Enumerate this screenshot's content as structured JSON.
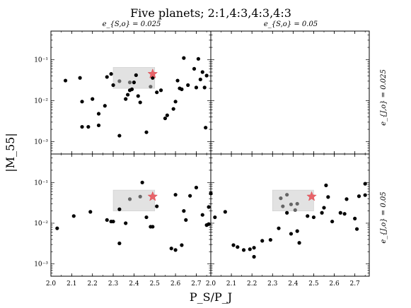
{
  "title": "Five planets; 2:1,4:3,4:3,4:3",
  "col_titles": [
    "e_{S,o} = 0.025",
    "e_{S,o} = 0.05"
  ],
  "row_titles": [
    "e_{J,o} = 0.025",
    "e_{J,o} = 0.05"
  ],
  "xlabel": "P_S/P_J",
  "ylabel": "|M_55|",
  "chart_data": {
    "type": "scatter",
    "title": "Five planets; 2:1,4:3,4:3,4:3",
    "xlabel": "P_S/P_J",
    "ylabel": "|M_55|",
    "xlim": [
      2.0,
      2.77
    ],
    "ylim": [
      0.0005,
      0.5
    ],
    "y_scale": "log",
    "x_ticks": [
      "2.0",
      "2.1",
      "2.2",
      "2.3",
      "2.4",
      "2.5",
      "2.6",
      "2.7"
    ],
    "y_ticks": [
      "10^-3",
      "10^-2",
      "10^-1"
    ],
    "shaded_region": {
      "x": [
        2.3,
        2.5
      ],
      "y": [
        0.02,
        0.065
      ]
    },
    "star": {
      "x": 2.49,
      "y": 0.045
    },
    "panels": [
      {
        "name": "top-left",
        "col_title": "e_{S,o} = 0.025",
        "row_title": null,
        "points": [
          [
            2.07,
            0.031
          ],
          [
            2.14,
            0.036
          ],
          [
            2.15,
            0.0095
          ],
          [
            2.15,
            0.0023
          ],
          [
            2.18,
            0.0023
          ],
          [
            2.2,
            0.011
          ],
          [
            2.23,
            0.0025
          ],
          [
            2.23,
            0.0048
          ],
          [
            2.26,
            0.0075
          ],
          [
            2.27,
            0.038
          ],
          [
            2.29,
            0.045
          ],
          [
            2.3,
            0.024
          ],
          [
            2.33,
            0.0014
          ],
          [
            2.36,
            0.011
          ],
          [
            2.37,
            0.014
          ],
          [
            2.38,
            0.018
          ],
          [
            2.39,
            0.019
          ],
          [
            2.4,
            0.028
          ],
          [
            2.41,
            0.042
          ],
          [
            2.42,
            0.013
          ],
          [
            2.43,
            0.0091
          ],
          [
            2.46,
            0.0017
          ],
          [
            2.49,
            0.036
          ],
          [
            2.51,
            0.016
          ],
          [
            2.53,
            0.018
          ],
          [
            2.55,
            0.0037
          ],
          [
            2.56,
            0.0044
          ],
          [
            2.59,
            0.0063
          ],
          [
            2.6,
            0.0095
          ],
          [
            2.61,
            0.031
          ],
          [
            2.62,
            0.02
          ],
          [
            2.63,
            0.019
          ],
          [
            2.64,
            0.11
          ],
          [
            2.66,
            0.024
          ],
          [
            2.69,
            0.06
          ],
          [
            2.7,
            0.021
          ],
          [
            2.71,
            0.105
          ],
          [
            2.72,
            0.033
          ],
          [
            2.73,
            0.05
          ],
          [
            2.74,
            0.021
          ],
          [
            2.745,
            0.0022
          ],
          [
            2.75,
            0.041
          ]
        ],
        "gray_points": [
          [
            2.33,
            0.03
          ],
          [
            2.38,
            0.028
          ],
          [
            2.48,
            0.022
          ]
        ]
      },
      {
        "name": "top-right",
        "col_title": "e_{S,o} = 0.05",
        "row_title": "e_{J,o} = 0.025",
        "points": [],
        "gray_points": []
      },
      {
        "name": "bottom-left",
        "col_title": null,
        "row_title": null,
        "points": [
          [
            2.03,
            0.0075
          ],
          [
            2.11,
            0.015
          ],
          [
            2.19,
            0.019
          ],
          [
            2.27,
            0.012
          ],
          [
            2.29,
            0.011
          ],
          [
            2.3,
            0.011
          ],
          [
            2.33,
            0.022
          ],
          [
            2.33,
            0.0032
          ],
          [
            2.36,
            0.01
          ],
          [
            2.44,
            0.1
          ],
          [
            2.46,
            0.014
          ],
          [
            2.48,
            0.0082
          ],
          [
            2.49,
            0.0082
          ],
          [
            2.51,
            0.026
          ],
          [
            2.58,
            0.0024
          ],
          [
            2.6,
            0.0022
          ],
          [
            2.6,
            0.05
          ],
          [
            2.63,
            0.0029
          ],
          [
            2.64,
            0.02
          ],
          [
            2.65,
            0.012
          ],
          [
            2.67,
            0.047
          ],
          [
            2.7,
            0.075
          ],
          [
            2.73,
            0.016
          ],
          [
            2.75,
            0.009
          ],
          [
            2.76,
            0.025
          ],
          [
            2.76,
            0.0095
          ]
        ],
        "gray_points": [
          [
            2.38,
            0.039
          ],
          [
            2.43,
            0.045
          ]
        ]
      },
      {
        "name": "bottom-right",
        "col_title": null,
        "row_title": "e_{J,o} = 0.05",
        "points": [
          [
            2.0,
            0.054
          ],
          [
            2.02,
            0.014
          ],
          [
            2.07,
            0.019
          ],
          [
            2.11,
            0.0029
          ],
          [
            2.13,
            0.0026
          ],
          [
            2.16,
            0.0022
          ],
          [
            2.19,
            0.0023
          ],
          [
            2.21,
            0.0015
          ],
          [
            2.21,
            0.0025
          ],
          [
            2.25,
            0.0037
          ],
          [
            2.29,
            0.0039
          ],
          [
            2.33,
            0.0075
          ],
          [
            2.37,
            0.018
          ],
          [
            2.39,
            0.0055
          ],
          [
            2.42,
            0.0064
          ],
          [
            2.43,
            0.0033
          ],
          [
            2.47,
            0.015
          ],
          [
            2.5,
            0.014
          ],
          [
            2.54,
            0.018
          ],
          [
            2.55,
            0.024
          ],
          [
            2.56,
            0.085
          ],
          [
            2.57,
            0.044
          ],
          [
            2.59,
            0.011
          ],
          [
            2.63,
            0.018
          ],
          [
            2.65,
            0.017
          ],
          [
            2.66,
            0.039
          ],
          [
            2.7,
            0.013
          ],
          [
            2.71,
            0.0072
          ],
          [
            2.72,
            0.046
          ],
          [
            2.75,
            0.093
          ],
          [
            2.75,
            0.049
          ]
        ],
        "gray_points": [
          [
            2.34,
            0.041
          ],
          [
            2.35,
            0.026
          ],
          [
            2.37,
            0.05
          ],
          [
            2.39,
            0.029
          ],
          [
            2.41,
            0.021
          ],
          [
            2.42,
            0.03
          ]
        ]
      }
    ]
  }
}
